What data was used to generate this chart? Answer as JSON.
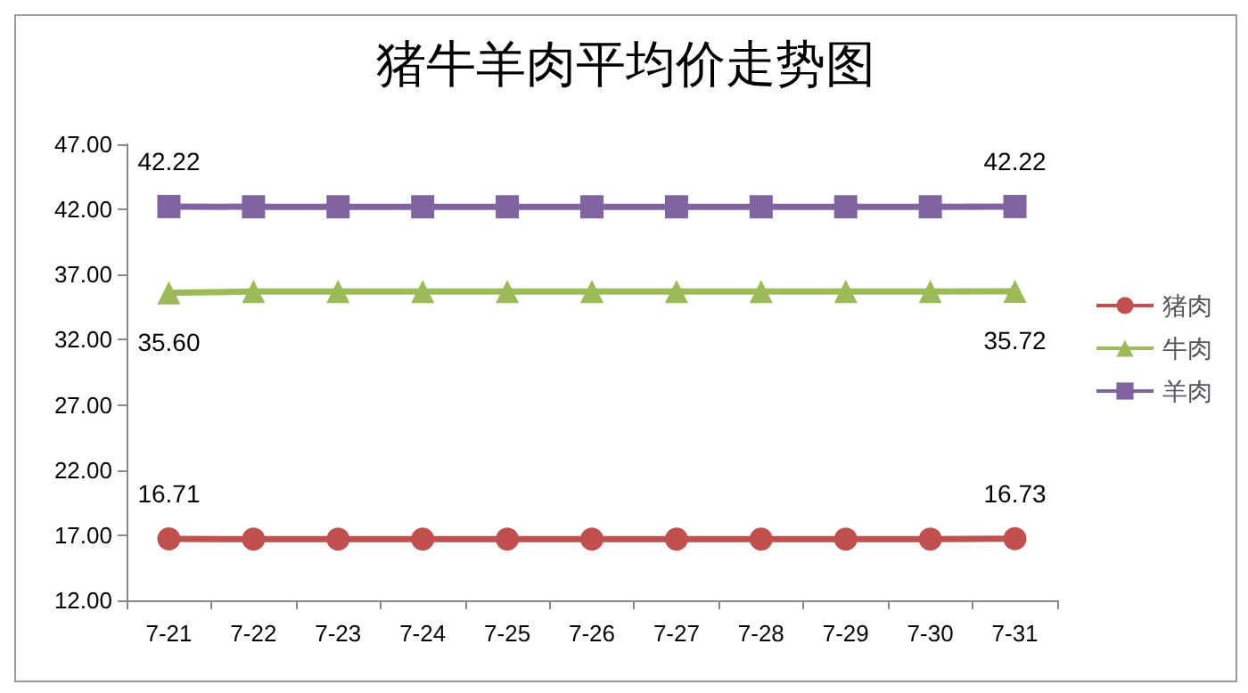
{
  "chart_data": {
    "type": "line",
    "title": "猪牛羊肉平均价走势图",
    "categories": [
      "7-21",
      "7-22",
      "7-23",
      "7-24",
      "7-25",
      "7-26",
      "7-27",
      "7-28",
      "7-29",
      "7-30",
      "7-31"
    ],
    "series": [
      {
        "name": "猪肉",
        "color": "#c0504d",
        "marker": "circle",
        "values": [
          16.71,
          16.7,
          16.7,
          16.7,
          16.7,
          16.7,
          16.7,
          16.7,
          16.7,
          16.7,
          16.73
        ],
        "value_labels": [
          "16.71",
          null,
          null,
          null,
          null,
          null,
          null,
          null,
          null,
          null,
          "16.73"
        ]
      },
      {
        "name": "牛肉",
        "color": "#9bbb59",
        "marker": "triangle",
        "values": [
          35.6,
          35.7,
          35.7,
          35.7,
          35.7,
          35.7,
          35.7,
          35.7,
          35.7,
          35.7,
          35.72
        ],
        "value_labels": [
          "35.60",
          null,
          null,
          null,
          null,
          null,
          null,
          null,
          null,
          null,
          "35.72"
        ]
      },
      {
        "name": "羊肉",
        "color": "#8064a2",
        "marker": "square",
        "values": [
          42.22,
          42.2,
          42.2,
          42.2,
          42.2,
          42.2,
          42.2,
          42.2,
          42.2,
          42.2,
          42.22
        ],
        "value_labels": [
          "42.22",
          null,
          null,
          null,
          null,
          null,
          null,
          null,
          null,
          null,
          "42.22"
        ]
      }
    ],
    "ylim": [
      12,
      47
    ],
    "yticks": [
      {
        "value": 12,
        "label": "12.00"
      },
      {
        "value": 17,
        "label": "17.00"
      },
      {
        "value": 22,
        "label": "22.00"
      },
      {
        "value": 27,
        "label": "27.00"
      },
      {
        "value": 32,
        "label": "32.00"
      },
      {
        "value": 37,
        "label": "37.00"
      },
      {
        "value": 42,
        "label": "42.00"
      },
      {
        "value": 47,
        "label": "47.00"
      }
    ],
    "grid": false,
    "legend": "right",
    "line_style": "solid"
  }
}
